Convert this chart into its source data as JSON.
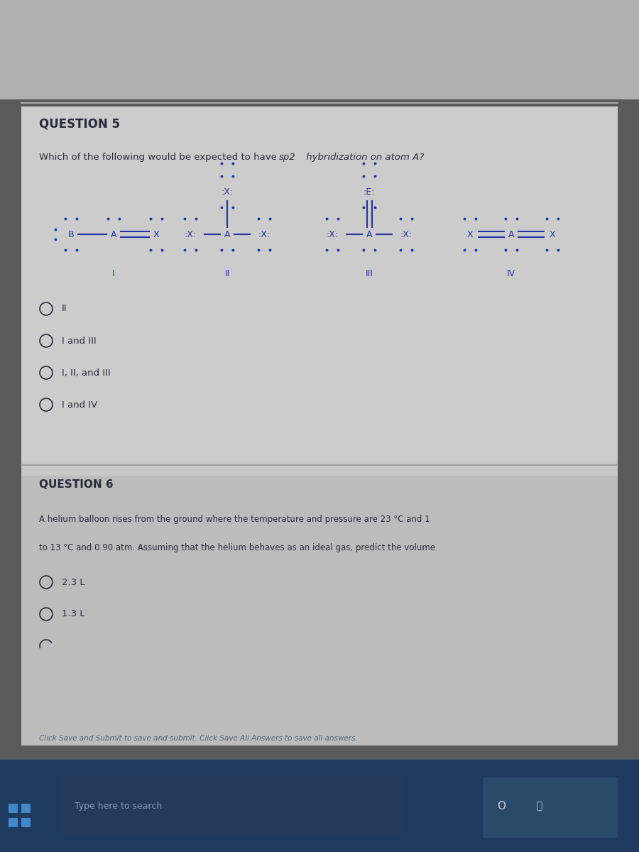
{
  "bg_top": "#c8c8c8",
  "bg_content": "#d0d0d0",
  "bg_question6": "#b8b8b8",
  "bg_taskbar": "#1a3a6b",
  "text_color": "#2a2a3a",
  "text_color_light": "#4a5a6a",
  "question5_title": "QUESTION 5",
  "question5_text": "Which of the following would be expected to have sp2 hybridization on atom A?",
  "q5_options": [
    "II",
    "I and III",
    "I, II, and III",
    "I and IV"
  ],
  "question6_title": "QUESTION 6",
  "question6_text1": "A helium balloon rises from the ground where the temperature and pressure are 23 °C and 1",
  "question6_text2": "to 13 °C and 0.90 atm. Assuming that the helium behaves as an ideal gas, predict the volume",
  "q6_options": [
    "2.3 L",
    "1.3 L"
  ],
  "footer_text": "Click Save and Submit to save and submit. Click Save All Answers to save all answers.",
  "taskbar_text": "Type here to search",
  "struct_label_color": "#2233aa",
  "lp_color": "#2233aa"
}
